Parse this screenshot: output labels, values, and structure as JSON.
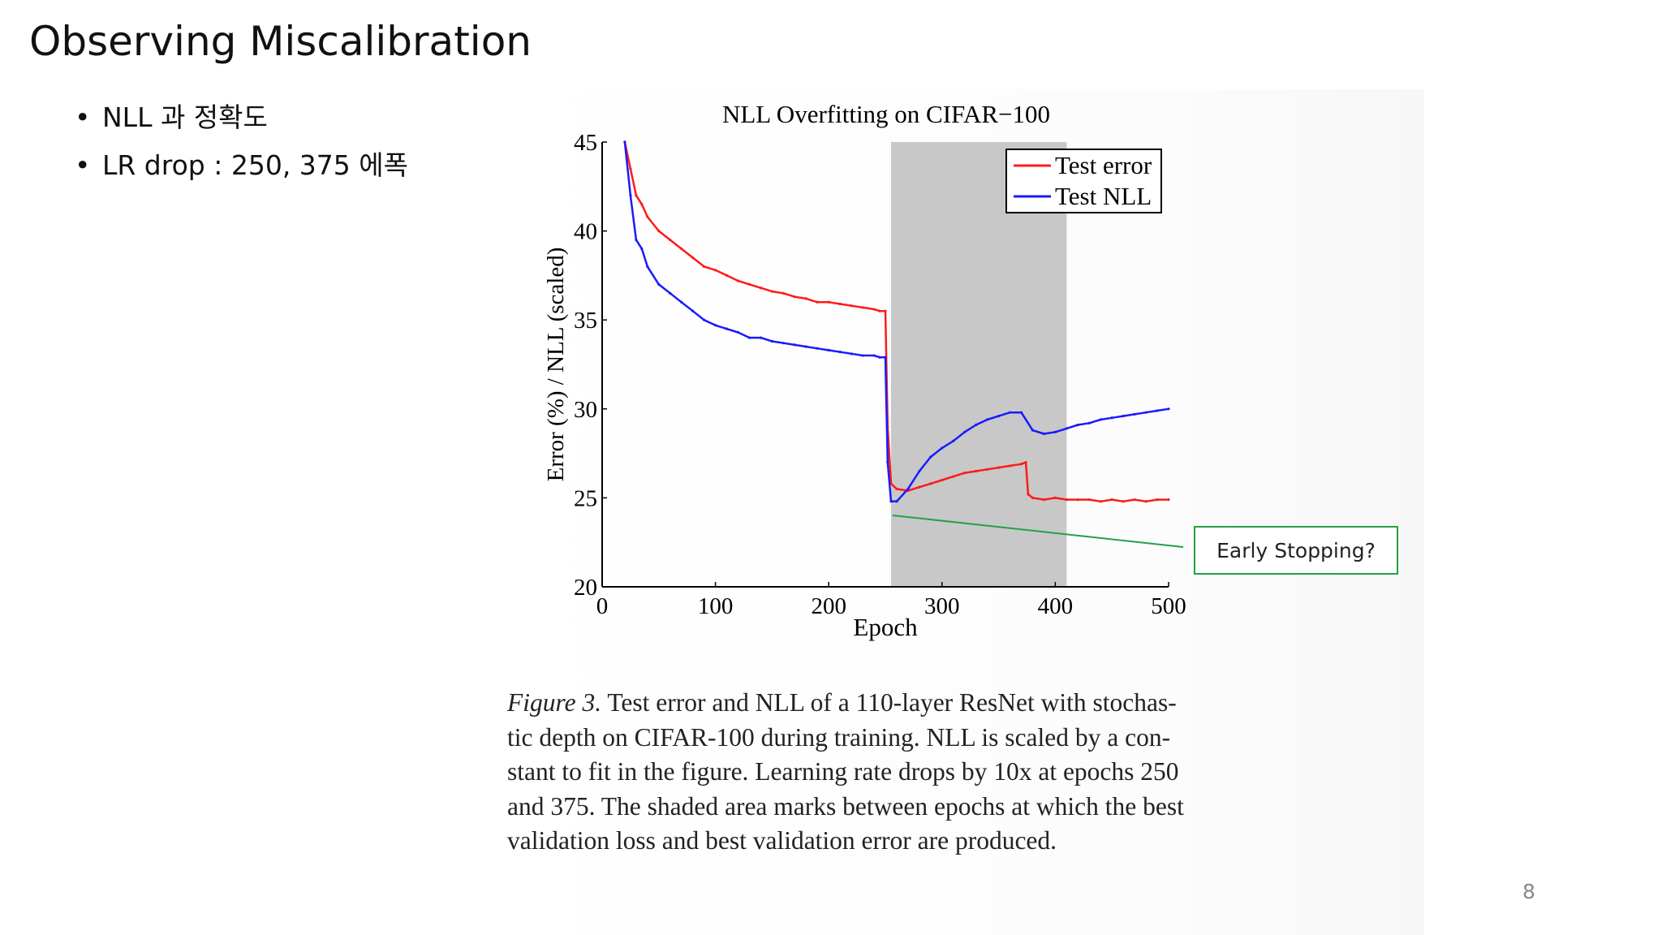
{
  "slide": {
    "title": "Observing Miscalibration",
    "bullets": [
      "NLL 과 정확도",
      "LR drop : 250, 375 에폭"
    ],
    "page_number": "8"
  },
  "callout": {
    "text": "Early Stopping?",
    "border_color": "#24a047"
  },
  "caption": {
    "label": "Figure 3.",
    "lines": [
      "Test error and NLL of a 110-layer ResNet with stochas-",
      "tic depth on CIFAR-100 during training. NLL is scaled by a con-",
      "stant to fit in the figure. Learning rate drops by 10x at epochs 250",
      "and 375. The shaded area marks between epochs at which the best",
      "validation loss and best validation error are produced."
    ]
  },
  "chart_data": {
    "type": "line",
    "title": "NLL Overfitting on CIFAR−100",
    "xlabel": "Epoch",
    "ylabel": "Error (%) / NLL (scaled)",
    "xlim": [
      0,
      500
    ],
    "ylim": [
      20,
      45
    ],
    "xticks": [
      0,
      100,
      200,
      300,
      400,
      500
    ],
    "yticks": [
      20,
      25,
      30,
      35,
      40,
      45
    ],
    "shaded_region": {
      "x_start": 255,
      "x_end": 410,
      "color": "#c8c8c8"
    },
    "legend_position": "top-right",
    "grid": false,
    "series": [
      {
        "name": "Test error",
        "color": "#ff1a1a",
        "x": [
          20,
          25,
          30,
          35,
          40,
          50,
          60,
          70,
          80,
          90,
          100,
          110,
          120,
          130,
          140,
          150,
          160,
          170,
          180,
          190,
          200,
          210,
          220,
          230,
          240,
          245,
          250,
          252,
          255,
          260,
          270,
          280,
          290,
          300,
          310,
          320,
          330,
          340,
          350,
          360,
          370,
          374,
          376,
          380,
          390,
          400,
          410,
          420,
          430,
          440,
          450,
          460,
          470,
          480,
          490,
          500
        ],
        "y": [
          45,
          43.5,
          42,
          41.5,
          40.8,
          40,
          39.5,
          39,
          38.5,
          38,
          37.8,
          37.5,
          37.2,
          37,
          36.8,
          36.6,
          36.5,
          36.3,
          36.2,
          36,
          36,
          35.9,
          35.8,
          35.7,
          35.6,
          35.5,
          35.5,
          29,
          25.8,
          25.5,
          25.4,
          25.6,
          25.8,
          26,
          26.2,
          26.4,
          26.5,
          26.6,
          26.7,
          26.8,
          26.9,
          27,
          25.2,
          25,
          24.9,
          25,
          24.9,
          24.9,
          24.9,
          24.8,
          24.9,
          24.8,
          24.9,
          24.8,
          24.9,
          24.9
        ]
      },
      {
        "name": "Test NLL",
        "color": "#1a1aff",
        "x": [
          20,
          25,
          30,
          35,
          40,
          50,
          60,
          70,
          80,
          90,
          100,
          110,
          120,
          130,
          140,
          150,
          160,
          170,
          180,
          190,
          200,
          210,
          220,
          230,
          240,
          245,
          250,
          252,
          255,
          260,
          270,
          280,
          290,
          300,
          310,
          320,
          330,
          340,
          350,
          360,
          370,
          380,
          390,
          400,
          410,
          420,
          430,
          440,
          450,
          460,
          470,
          480,
          490,
          500
        ],
        "y": [
          45,
          42,
          39.5,
          39,
          38,
          37,
          36.5,
          36,
          35.5,
          35,
          34.7,
          34.5,
          34.3,
          34,
          34,
          33.8,
          33.7,
          33.6,
          33.5,
          33.4,
          33.3,
          33.2,
          33.1,
          33,
          33,
          32.9,
          32.9,
          27,
          24.8,
          24.8,
          25.5,
          26.5,
          27.3,
          27.8,
          28.2,
          28.7,
          29.1,
          29.4,
          29.6,
          29.8,
          29.8,
          28.8,
          28.6,
          28.7,
          28.9,
          29.1,
          29.2,
          29.4,
          29.5,
          29.6,
          29.7,
          29.8,
          29.9,
          30.0
        ]
      }
    ]
  }
}
